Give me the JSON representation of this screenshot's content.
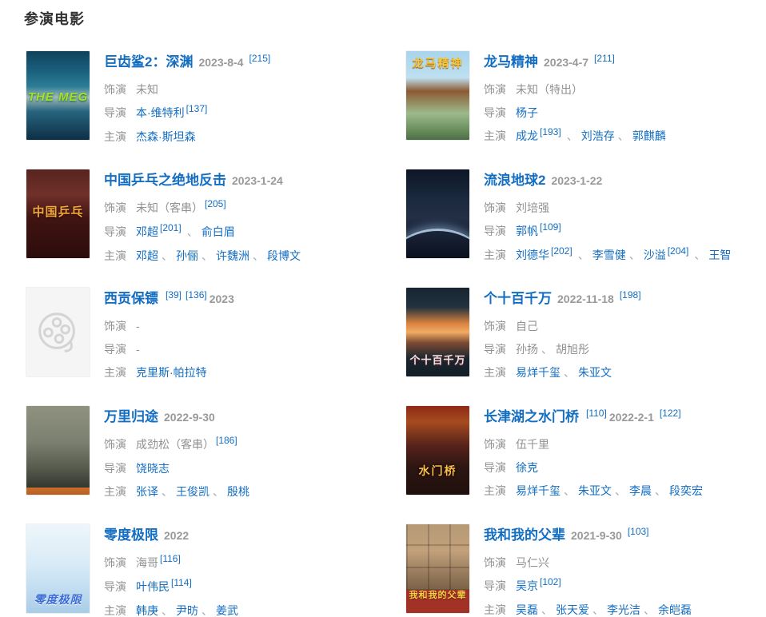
{
  "page": {
    "title": "参演电影"
  },
  "labels": {
    "role": "饰演",
    "director": "导演",
    "starring": "主演"
  },
  "colors": {
    "link_blue": "#136ec2",
    "text_gray": "#999999",
    "heading": "#333333",
    "placeholder_bg": "#f5f5f5",
    "placeholder_icon": "#d4d4d4"
  },
  "icons": {
    "placeholder": "film-reel-icon"
  },
  "movies": [
    {
      "title": "巨齿鲨2：深渊",
      "poster": {
        "kind": "art",
        "text": "THE MEG"
      },
      "title_segs": [
        {
          "t": "2023-8-4",
          "k": "date"
        },
        {
          "t": "[215]",
          "k": "ref"
        }
      ],
      "role_segs": [
        {
          "t": "未知",
          "k": "text"
        }
      ],
      "director_segs": [
        {
          "t": "本·维特利",
          "k": "link"
        },
        {
          "t": "[137]",
          "k": "ref"
        }
      ],
      "starring_segs": [
        {
          "t": "杰森·斯坦森",
          "k": "link"
        }
      ]
    },
    {
      "title": "龙马精神",
      "poster": {
        "kind": "art",
        "text": "龙马精神"
      },
      "title_segs": [
        {
          "t": "2023-4-7",
          "k": "date"
        },
        {
          "t": "[211]",
          "k": "ref"
        }
      ],
      "role_segs": [
        {
          "t": "未知（特出）",
          "k": "text"
        }
      ],
      "director_segs": [
        {
          "t": "杨子",
          "k": "link"
        }
      ],
      "starring_segs": [
        {
          "t": "成龙",
          "k": "link"
        },
        {
          "t": "[193]",
          "k": "ref"
        },
        {
          "t": "、",
          "k": "sep"
        },
        {
          "t": "刘浩存",
          "k": "link"
        },
        {
          "t": "、",
          "k": "sep"
        },
        {
          "t": "郭麒麟",
          "k": "link"
        }
      ]
    },
    {
      "title": "中国乒乓之绝地反击",
      "poster": {
        "kind": "art",
        "text": "中国乒乓"
      },
      "title_segs": [
        {
          "t": "2023-1-24",
          "k": "date"
        }
      ],
      "role_segs": [
        {
          "t": "未知（客串）",
          "k": "text"
        },
        {
          "t": "[205]",
          "k": "ref"
        }
      ],
      "director_segs": [
        {
          "t": "邓超",
          "k": "link"
        },
        {
          "t": "[201]",
          "k": "ref"
        },
        {
          "t": "、",
          "k": "sep"
        },
        {
          "t": "俞白眉",
          "k": "link"
        }
      ],
      "starring_segs": [
        {
          "t": "邓超",
          "k": "link"
        },
        {
          "t": "、",
          "k": "sep"
        },
        {
          "t": "孙俪",
          "k": "link"
        },
        {
          "t": "、",
          "k": "sep"
        },
        {
          "t": "许魏洲",
          "k": "link"
        },
        {
          "t": "、",
          "k": "sep"
        },
        {
          "t": "段博文",
          "k": "link"
        }
      ]
    },
    {
      "title": "流浪地球2",
      "poster": {
        "kind": "art",
        "text": ""
      },
      "title_segs": [
        {
          "t": "2023-1-22",
          "k": "date"
        }
      ],
      "role_segs": [
        {
          "t": "刘培强",
          "k": "text"
        }
      ],
      "director_segs": [
        {
          "t": "郭帆",
          "k": "link"
        },
        {
          "t": "[109]",
          "k": "ref"
        }
      ],
      "starring_segs": [
        {
          "t": "刘德华",
          "k": "link"
        },
        {
          "t": "[202]",
          "k": "ref"
        },
        {
          "t": "、",
          "k": "sep"
        },
        {
          "t": "李雪健",
          "k": "link"
        },
        {
          "t": "、",
          "k": "sep"
        },
        {
          "t": "沙溢",
          "k": "link"
        },
        {
          "t": "[204]",
          "k": "ref"
        },
        {
          "t": "、",
          "k": "sep"
        },
        {
          "t": "王智",
          "k": "link"
        }
      ]
    },
    {
      "title": "西贡保镖",
      "poster": {
        "kind": "placeholder",
        "text": ""
      },
      "title_segs": [
        {
          "t": "[39]",
          "k": "ref"
        },
        {
          "t": "[136]",
          "k": "ref"
        },
        {
          "t": "2023",
          "k": "date"
        }
      ],
      "role_segs": [
        {
          "t": "-",
          "k": "text"
        }
      ],
      "director_segs": [
        {
          "t": "-",
          "k": "text"
        }
      ],
      "starring_segs": [
        {
          "t": "克里斯·帕拉特",
          "k": "link"
        }
      ]
    },
    {
      "title": "个十百千万",
      "poster": {
        "kind": "art",
        "text": "个十百千万"
      },
      "title_segs": [
        {
          "t": "2022-11-18",
          "k": "date"
        },
        {
          "t": "[198]",
          "k": "ref"
        }
      ],
      "role_segs": [
        {
          "t": "自己",
          "k": "text"
        }
      ],
      "director_segs": [
        {
          "t": "孙扬",
          "k": "text"
        },
        {
          "t": "、",
          "k": "sep"
        },
        {
          "t": "胡旭彤",
          "k": "text"
        }
      ],
      "starring_segs": [
        {
          "t": "易烊千玺",
          "k": "link"
        },
        {
          "t": "、",
          "k": "sep"
        },
        {
          "t": "朱亚文",
          "k": "link"
        }
      ]
    },
    {
      "title": "万里归途",
      "poster": {
        "kind": "art",
        "text": ""
      },
      "title_segs": [
        {
          "t": "2022-9-30",
          "k": "date"
        }
      ],
      "role_segs": [
        {
          "t": "成劲松（客串）",
          "k": "text"
        },
        {
          "t": "[186]",
          "k": "ref"
        }
      ],
      "director_segs": [
        {
          "t": "饶晓志",
          "k": "link"
        }
      ],
      "starring_segs": [
        {
          "t": "张译",
          "k": "link"
        },
        {
          "t": "、",
          "k": "sep"
        },
        {
          "t": "王俊凯",
          "k": "link"
        },
        {
          "t": "、",
          "k": "sep"
        },
        {
          "t": "殷桃",
          "k": "link"
        }
      ]
    },
    {
      "title": "长津湖之水门桥",
      "poster": {
        "kind": "art",
        "text": "水门桥"
      },
      "title_segs": [
        {
          "t": "[110]",
          "k": "ref"
        },
        {
          "t": "2022-2-1",
          "k": "date"
        },
        {
          "t": "[122]",
          "k": "ref"
        }
      ],
      "role_segs": [
        {
          "t": "伍千里",
          "k": "text"
        }
      ],
      "director_segs": [
        {
          "t": "徐克",
          "k": "link"
        }
      ],
      "starring_segs": [
        {
          "t": "易烊千玺",
          "k": "link"
        },
        {
          "t": "、",
          "k": "sep"
        },
        {
          "t": "朱亚文",
          "k": "link"
        },
        {
          "t": "、",
          "k": "sep"
        },
        {
          "t": "李晨",
          "k": "link"
        },
        {
          "t": "、",
          "k": "sep"
        },
        {
          "t": "段奕宏",
          "k": "link"
        }
      ]
    },
    {
      "title": "零度极限",
      "poster": {
        "kind": "art",
        "text": "零度极限"
      },
      "title_segs": [
        {
          "t": "2022",
          "k": "date"
        }
      ],
      "role_segs": [
        {
          "t": "海哥",
          "k": "text"
        },
        {
          "t": "[116]",
          "k": "ref"
        }
      ],
      "director_segs": [
        {
          "t": "叶伟民",
          "k": "link"
        },
        {
          "t": "[114]",
          "k": "ref"
        }
      ],
      "starring_segs": [
        {
          "t": "韩庚",
          "k": "link"
        },
        {
          "t": "、",
          "k": "sep"
        },
        {
          "t": "尹昉",
          "k": "link"
        },
        {
          "t": "、",
          "k": "sep"
        },
        {
          "t": "姜武",
          "k": "link"
        }
      ]
    },
    {
      "title": "我和我的父辈",
      "poster": {
        "kind": "art",
        "text": "我和我的父辈"
      },
      "title_segs": [
        {
          "t": "2021-9-30",
          "k": "date"
        },
        {
          "t": "[103]",
          "k": "ref"
        }
      ],
      "role_segs": [
        {
          "t": "马仁兴",
          "k": "text"
        }
      ],
      "director_segs": [
        {
          "t": "吴京",
          "k": "link"
        },
        {
          "t": "[102]",
          "k": "ref"
        }
      ],
      "starring_segs": [
        {
          "t": "吴磊",
          "k": "link"
        },
        {
          "t": "、",
          "k": "sep"
        },
        {
          "t": "张天爱",
          "k": "link"
        },
        {
          "t": "、",
          "k": "sep"
        },
        {
          "t": "李光洁",
          "k": "link"
        },
        {
          "t": "、",
          "k": "sep"
        },
        {
          "t": "余皑磊",
          "k": "link"
        }
      ]
    }
  ]
}
